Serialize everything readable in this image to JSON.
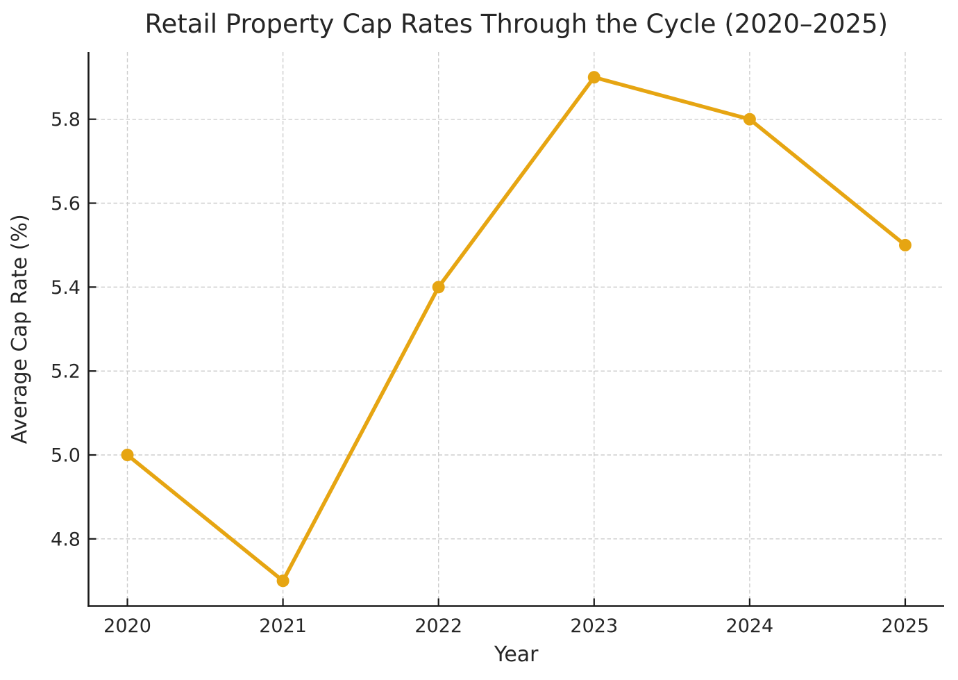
{
  "chart_data": {
    "type": "line",
    "title": "Retail Property Cap Rates Through the Cycle (2020–2025)",
    "xlabel": "Year",
    "ylabel": "Average Cap Rate (%)",
    "x": [
      2020,
      2021,
      2022,
      2023,
      2024,
      2025
    ],
    "xtick_labels": [
      "2020",
      "2021",
      "2022",
      "2023",
      "2024",
      "2025"
    ],
    "series": [
      {
        "name": "Average Cap Rate",
        "values": [
          5.0,
          4.7,
          5.4,
          5.9,
          5.8,
          5.5
        ]
      }
    ],
    "xlim": [
      2019.75,
      2025.25
    ],
    "ylim": [
      4.64,
      5.96
    ],
    "yticks": [
      4.8,
      5.0,
      5.2,
      5.4,
      5.6,
      5.8
    ],
    "ytick_labels": [
      "4.8",
      "5.0",
      "5.2",
      "5.4",
      "5.6",
      "5.8"
    ],
    "grid": true,
    "grid_style": "dashed",
    "legend": "none",
    "colors": {
      "line": "#E6A512",
      "marker": "#E6A512",
      "grid": "#CDCDCD",
      "spine": "#1A1A1A",
      "text": "#262626",
      "background": "#FFFFFF"
    }
  }
}
